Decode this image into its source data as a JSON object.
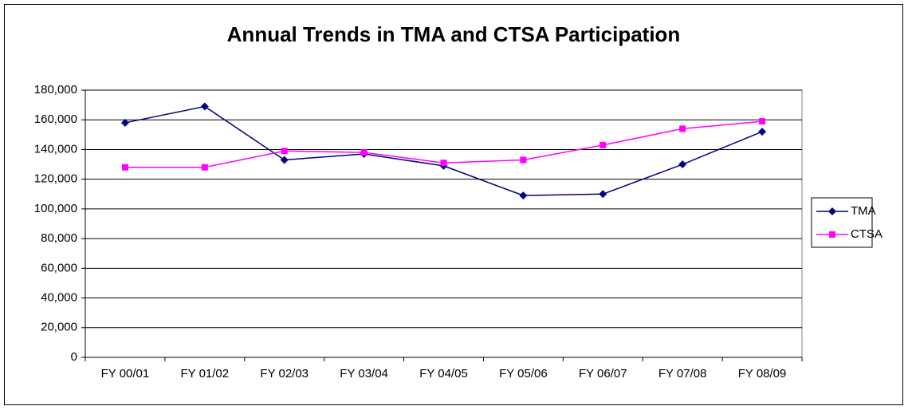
{
  "chart_data": {
    "type": "line",
    "title": "Annual Trends in TMA and CTSA Participation",
    "categories": [
      "FY 00/01",
      "FY 01/02",
      "FY 02/03",
      "FY 03/04",
      "FY 04/05",
      "FY 05/06",
      "FY 06/07",
      "FY 07/08",
      "FY 08/09"
    ],
    "series": [
      {
        "name": "TMA",
        "color": "#000080",
        "marker": "diamond",
        "values": [
          158000,
          169000,
          133000,
          137000,
          129000,
          109000,
          110000,
          130000,
          152000
        ]
      },
      {
        "name": "CTSA",
        "color": "#FF00FF",
        "marker": "square",
        "values": [
          128000,
          128000,
          139000,
          138000,
          131000,
          133000,
          143000,
          154000,
          159000
        ]
      }
    ],
    "ylim": [
      0,
      180000
    ],
    "yticks": [
      0,
      {
        "value": 20000,
        "label": "20,000"
      },
      {
        "value": 40000,
        "label": "40,000"
      },
      {
        "value": 60000,
        "label": "60,000"
      },
      {
        "value": 80000,
        "label": "80,000"
      },
      {
        "value": 100000,
        "label": "100,000"
      },
      {
        "value": 120000,
        "label": "120,000"
      },
      {
        "value": 140000,
        "label": "140,000"
      },
      {
        "value": 160000,
        "label": "160,000"
      },
      {
        "value": 180000,
        "label": "180,000"
      }
    ],
    "grid": true,
    "legend": "right"
  }
}
